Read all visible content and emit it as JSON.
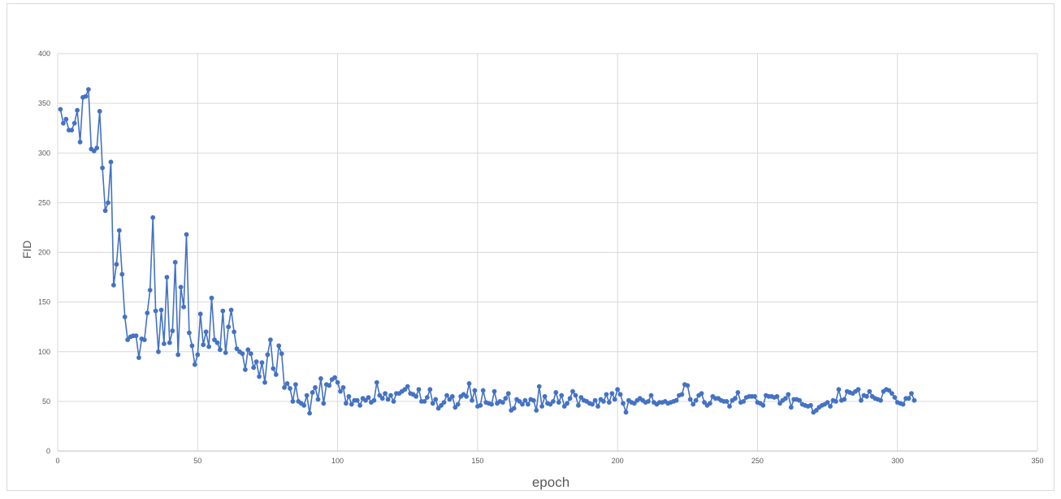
{
  "chart_data": {
    "type": "line",
    "xlabel": "epoch",
    "ylabel": "FID",
    "xlim": [
      0,
      350
    ],
    "ylim": [
      0,
      400
    ],
    "x_ticks": [
      "0",
      "50",
      "100",
      "150",
      "200",
      "250",
      "300",
      "350"
    ],
    "y_ticks": [
      "0",
      "50",
      "100",
      "150",
      "200",
      "250",
      "300",
      "350",
      "400"
    ],
    "grid": true,
    "legend": "none",
    "colors": {
      "series": "#4472c4",
      "grid": "#d9d9d9"
    },
    "series": [
      {
        "x_start": 1,
        "x_step": 1,
        "values": [
          344,
          330,
          334,
          323,
          323,
          330,
          343,
          311,
          356,
          357,
          364,
          304,
          302,
          305,
          342,
          285,
          242,
          250,
          291,
          167,
          188,
          222,
          178,
          135,
          112,
          115,
          116,
          116,
          94,
          113,
          112,
          139,
          162,
          235,
          141,
          100,
          142,
          108,
          175,
          109,
          121,
          190,
          97,
          165,
          145,
          218,
          119,
          106,
          87,
          97,
          138,
          107,
          120,
          105,
          154,
          112,
          109,
          102,
          141,
          99,
          125,
          142,
          120,
          103,
          100,
          98,
          82,
          102,
          98,
          84,
          90,
          75,
          89,
          69,
          97,
          112,
          83,
          77,
          106,
          98,
          64,
          68,
          63,
          50,
          67,
          50,
          48,
          46,
          56,
          38,
          59,
          64,
          52,
          73,
          48,
          67,
          66,
          72,
          74,
          69,
          60,
          64,
          48,
          55,
          47,
          51,
          51,
          46,
          53,
          51,
          54,
          49,
          51,
          69,
          56,
          53,
          58,
          52,
          56,
          50,
          58,
          58,
          60,
          62,
          65,
          58,
          57,
          55,
          62,
          50,
          50,
          54,
          62,
          48,
          52,
          43,
          46,
          49,
          56,
          52,
          55,
          44,
          47,
          55,
          57,
          55,
          68,
          51,
          61,
          45,
          46,
          61,
          49,
          48,
          47,
          60,
          48,
          50,
          49,
          53,
          58,
          41,
          43,
          52,
          50,
          47,
          51,
          47,
          52,
          51,
          41,
          65,
          45,
          55,
          48,
          47,
          50,
          59,
          49,
          56,
          45,
          48,
          53,
          60,
          56,
          46,
          54,
          51,
          50,
          48,
          47,
          51,
          45,
          52,
          50,
          57,
          49,
          58,
          52,
          62,
          57,
          48,
          39,
          51,
          49,
          48,
          51,
          53,
          51,
          49,
          50,
          56,
          49,
          47,
          49,
          49,
          50,
          48,
          49,
          50,
          51,
          56,
          57,
          67,
          66,
          52,
          47,
          51,
          56,
          58,
          49,
          46,
          48,
          55,
          53,
          53,
          51,
          50,
          50,
          45,
          51,
          53,
          59,
          49,
          50,
          54,
          55,
          55,
          55,
          49,
          48,
          46,
          56,
          55,
          55,
          54,
          55,
          48,
          51,
          53,
          57,
          44,
          52,
          52,
          51,
          47,
          46,
          45,
          46,
          39,
          41,
          44,
          46,
          47,
          49,
          45,
          51,
          50,
          62,
          51,
          52,
          60,
          59,
          58,
          60,
          62,
          51,
          56,
          55,
          60,
          55,
          53,
          52,
          51,
          60,
          62,
          61,
          58,
          54,
          49,
          48,
          47,
          53,
          53,
          58,
          51
        ]
      }
    ]
  }
}
